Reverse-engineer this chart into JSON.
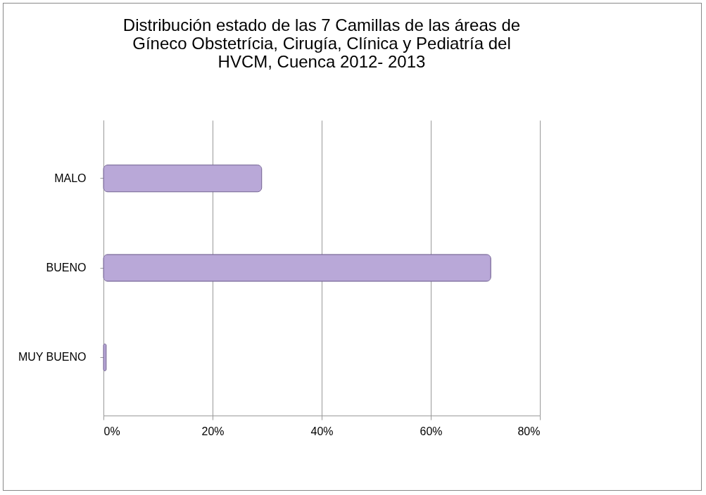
{
  "chart_data": {
    "type": "bar",
    "orientation": "horizontal",
    "title": "Distribución estado de las 7 Camillas de las áreas de Gíneco Obstetrícia, Cirugía, Clínica y Pediatría del HVCM, Cuenca 2012- 2013",
    "categories": [
      "MALO",
      "BUENO",
      "MUY BUENO"
    ],
    "values": [
      29,
      71,
      0.5
    ],
    "color": "#b9a8d8",
    "xlim": [
      0,
      80
    ],
    "xticks": [
      {
        "value": 0,
        "label": "0%"
      },
      {
        "value": 20,
        "label": "20%"
      },
      {
        "value": 40,
        "label": "40%"
      },
      {
        "value": 60,
        "label": "60%"
      },
      {
        "value": 80,
        "label": "80%"
      }
    ],
    "grid": "x"
  }
}
